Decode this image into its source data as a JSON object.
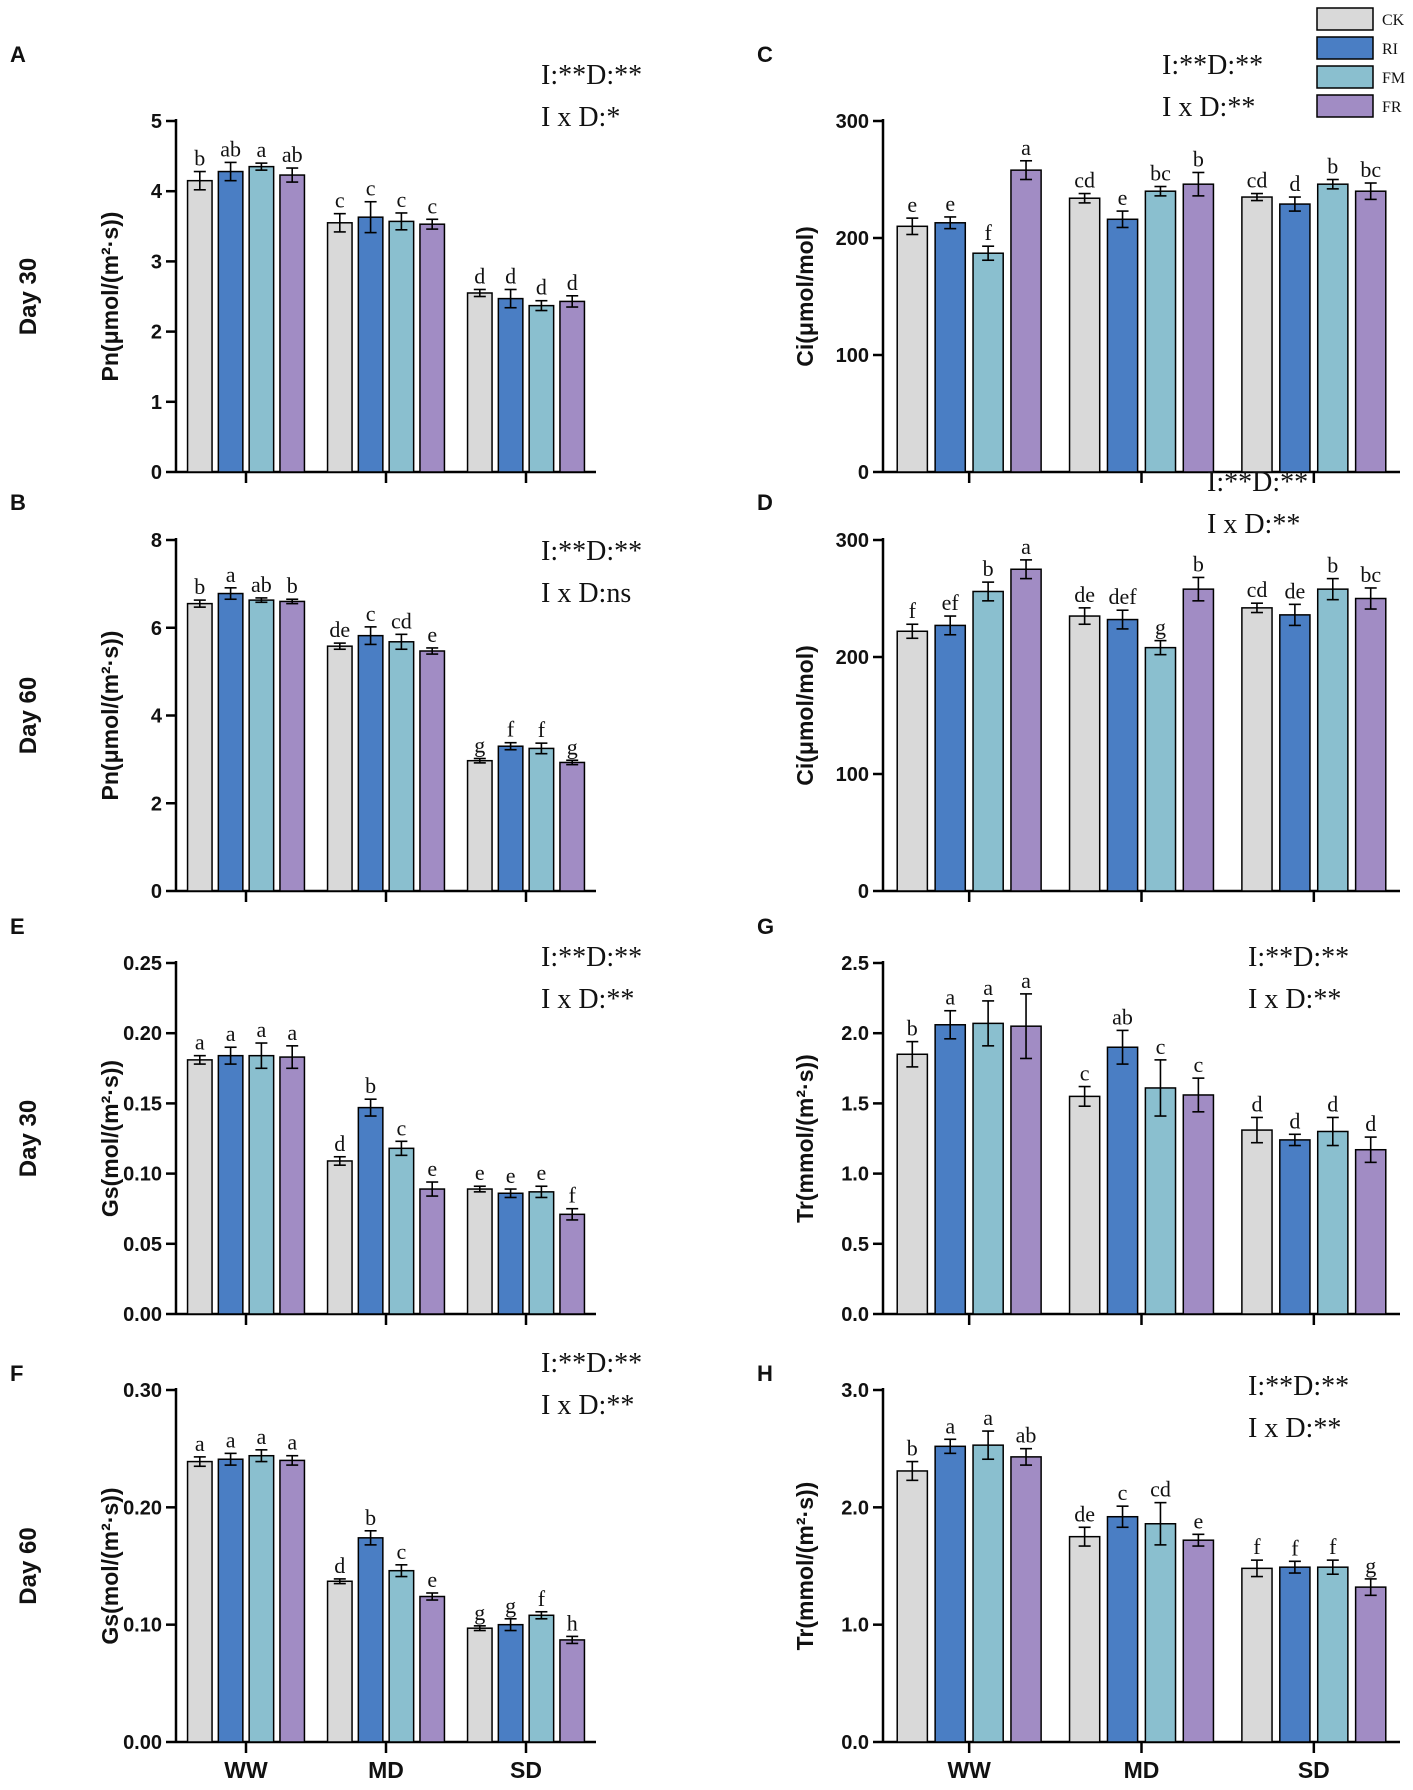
{
  "legend": {
    "entries": [
      {
        "name": "CK",
        "color": "#D9D9D9"
      },
      {
        "name": "RI",
        "color": "#4A7EC4"
      },
      {
        "name": "FM",
        "color": "#8ABFCF"
      },
      {
        "name": "FR",
        "color": "#A18CC4"
      }
    ]
  },
  "x_categories": [
    "WW",
    "MD",
    "SD"
  ],
  "row_labels": [
    "Day 30",
    "Day 60"
  ],
  "chart_data": [
    {
      "type": "bar",
      "panel": "A",
      "row_label": "Day 30",
      "ylabel": "Pn(μmol/(m²·s))",
      "ylim": [
        0,
        5
      ],
      "yticks": [
        "0",
        "1",
        "2",
        "3",
        "4",
        "5"
      ],
      "categories": [
        "WW",
        "MD",
        "SD"
      ],
      "show_xlabels": false,
      "annotation": [
        "I:**D:**",
        "I x D:*"
      ],
      "series": [
        {
          "name": "CK",
          "values": [
            4.15,
            3.55,
            2.55
          ],
          "errors": [
            0.13,
            0.13,
            0.05
          ],
          "letters": [
            "b",
            "c",
            "d"
          ]
        },
        {
          "name": "RI",
          "values": [
            4.28,
            3.63,
            2.47
          ],
          "errors": [
            0.13,
            0.22,
            0.13
          ],
          "letters": [
            "ab",
            "c",
            "d"
          ]
        },
        {
          "name": "FM",
          "values": [
            4.35,
            3.57,
            2.37
          ],
          "errors": [
            0.05,
            0.12,
            0.07
          ],
          "letters": [
            "a",
            "c",
            "d"
          ]
        },
        {
          "name": "FR",
          "values": [
            4.23,
            3.53,
            2.43
          ],
          "errors": [
            0.1,
            0.07,
            0.08
          ],
          "letters": [
            "ab",
            "c",
            "d"
          ]
        }
      ]
    },
    {
      "type": "bar",
      "panel": "C",
      "row_label": "",
      "ylabel": "Ci(μmol/mol)",
      "ylim": [
        0,
        300
      ],
      "yticks": [
        "0",
        "100",
        "200",
        "300"
      ],
      "categories": [
        "WW",
        "MD",
        "SD"
      ],
      "show_xlabels": false,
      "annotation": [
        "I:**D:**",
        "I x D:**"
      ],
      "series": [
        {
          "name": "CK",
          "values": [
            210,
            234,
            235
          ],
          "errors": [
            7,
            4,
            3
          ],
          "letters": [
            "e",
            "cd",
            "cd"
          ]
        },
        {
          "name": "RI",
          "values": [
            213,
            216,
            229
          ],
          "errors": [
            5,
            7,
            6
          ],
          "letters": [
            "e",
            "e",
            "d"
          ]
        },
        {
          "name": "FM",
          "values": [
            187,
            240,
            246
          ],
          "errors": [
            6,
            4,
            4
          ],
          "letters": [
            "f",
            "bc",
            "b"
          ]
        },
        {
          "name": "FR",
          "values": [
            258,
            246,
            240
          ],
          "errors": [
            8,
            10,
            7
          ],
          "letters": [
            "a",
            "b",
            "bc"
          ]
        }
      ]
    },
    {
      "type": "bar",
      "panel": "B",
      "row_label": "Day 60",
      "ylabel": "Pn(μmol/(m²·s))",
      "ylim": [
        0,
        8
      ],
      "yticks": [
        "0",
        "2",
        "4",
        "6",
        "8"
      ],
      "categories": [
        "WW",
        "MD",
        "SD"
      ],
      "show_xlabels": false,
      "annotation": [
        "I:**D:**",
        "I x D:ns"
      ],
      "series": [
        {
          "name": "CK",
          "values": [
            6.55,
            5.58,
            2.97
          ],
          "errors": [
            0.08,
            0.07,
            0.05
          ],
          "letters": [
            "b",
            "de",
            "g"
          ]
        },
        {
          "name": "RI",
          "values": [
            6.78,
            5.82,
            3.3
          ],
          "errors": [
            0.13,
            0.2,
            0.08
          ],
          "letters": [
            "a",
            "c",
            "f"
          ]
        },
        {
          "name": "FM",
          "values": [
            6.63,
            5.68,
            3.25
          ],
          "errors": [
            0.05,
            0.17,
            0.12
          ],
          "letters": [
            "ab",
            "cd",
            "f"
          ]
        },
        {
          "name": "FR",
          "values": [
            6.6,
            5.47,
            2.93
          ],
          "errors": [
            0.05,
            0.07,
            0.05
          ],
          "letters": [
            "b",
            "e",
            "g"
          ]
        }
      ]
    },
    {
      "type": "bar",
      "panel": "D",
      "row_label": "",
      "ylabel": "Ci(μmol/mol)",
      "ylim": [
        0,
        300
      ],
      "yticks": [
        "0",
        "100",
        "200",
        "300"
      ],
      "categories": [
        "WW",
        "MD",
        "SD"
      ],
      "show_xlabels": false,
      "annotation": [
        "I:**D:**",
        "I x D:**"
      ],
      "series": [
        {
          "name": "CK",
          "values": [
            222,
            235,
            242
          ],
          "errors": [
            6,
            7,
            4
          ],
          "letters": [
            "f",
            "de",
            "cd"
          ]
        },
        {
          "name": "RI",
          "values": [
            227,
            232,
            236
          ],
          "errors": [
            8,
            8,
            9
          ],
          "letters": [
            "ef",
            "def",
            "de"
          ]
        },
        {
          "name": "FM",
          "values": [
            256,
            208,
            258
          ],
          "errors": [
            8,
            6,
            9
          ],
          "letters": [
            "b",
            "g",
            "b"
          ]
        },
        {
          "name": "FR",
          "values": [
            275,
            258,
            250
          ],
          "errors": [
            8,
            10,
            9
          ],
          "letters": [
            "a",
            "b",
            "bc"
          ]
        }
      ]
    },
    {
      "type": "bar",
      "panel": "E",
      "row_label": "Day 30",
      "ylabel": "Gs(mol/(m²·s))",
      "ylim": [
        0,
        0.25
      ],
      "yticks": [
        "0.00",
        "0.05",
        "0.10",
        "0.15",
        "0.20",
        "0.25"
      ],
      "categories": [
        "WW",
        "MD",
        "SD"
      ],
      "show_xlabels": false,
      "annotation": [
        "I:**D:**",
        "I x D:**"
      ],
      "series": [
        {
          "name": "CK",
          "values": [
            0.181,
            0.109,
            0.089
          ],
          "errors": [
            0.003,
            0.003,
            0.002
          ],
          "letters": [
            "a",
            "d",
            "e"
          ]
        },
        {
          "name": "RI",
          "values": [
            0.184,
            0.147,
            0.086
          ],
          "errors": [
            0.006,
            0.006,
            0.003
          ],
          "letters": [
            "a",
            "b",
            "e"
          ]
        },
        {
          "name": "FM",
          "values": [
            0.184,
            0.118,
            0.087
          ],
          "errors": [
            0.009,
            0.005,
            0.004
          ],
          "letters": [
            "a",
            "c",
            "e"
          ]
        },
        {
          "name": "FR",
          "values": [
            0.183,
            0.089,
            0.071
          ],
          "errors": [
            0.008,
            0.005,
            0.004
          ],
          "letters": [
            "a",
            "e",
            "f"
          ]
        }
      ]
    },
    {
      "type": "bar",
      "panel": "G",
      "row_label": "",
      "ylabel": "Tr(mmol/(m²·s))",
      "ylim": [
        0,
        2.5
      ],
      "yticks": [
        "0.0",
        "0.5",
        "1.0",
        "1.5",
        "2.0",
        "2.5"
      ],
      "categories": [
        "WW",
        "MD",
        "SD"
      ],
      "show_xlabels": false,
      "annotation": [
        "I:**D:**",
        "I x D:**"
      ],
      "series": [
        {
          "name": "CK",
          "values": [
            1.85,
            1.55,
            1.31
          ],
          "errors": [
            0.09,
            0.07,
            0.09
          ],
          "letters": [
            "b",
            "c",
            "d"
          ]
        },
        {
          "name": "RI",
          "values": [
            2.06,
            1.9,
            1.24
          ],
          "errors": [
            0.1,
            0.12,
            0.04
          ],
          "letters": [
            "a",
            "ab",
            "d"
          ]
        },
        {
          "name": "FM",
          "values": [
            2.07,
            1.61,
            1.3
          ],
          "errors": [
            0.16,
            0.2,
            0.1
          ],
          "letters": [
            "a",
            "c",
            "d"
          ]
        },
        {
          "name": "FR",
          "values": [
            2.05,
            1.56,
            1.17
          ],
          "errors": [
            0.23,
            0.12,
            0.09
          ],
          "letters": [
            "a",
            "c",
            "d"
          ]
        }
      ]
    },
    {
      "type": "bar",
      "panel": "F",
      "row_label": "Day 60",
      "ylabel": "Gs(mol/(m²·s))",
      "ylim": [
        0,
        0.3
      ],
      "yticks": [
        "0.00",
        "0.10",
        "0.20",
        "0.30"
      ],
      "categories": [
        "WW",
        "MD",
        "SD"
      ],
      "show_xlabels": true,
      "annotation": [
        "I:**D:**",
        "I x D:**"
      ],
      "series": [
        {
          "name": "CK",
          "values": [
            0.239,
            0.137,
            0.097
          ],
          "errors": [
            0.004,
            0.002,
            0.002
          ],
          "letters": [
            "a",
            "d",
            "g"
          ]
        },
        {
          "name": "RI",
          "values": [
            0.241,
            0.174,
            0.1
          ],
          "errors": [
            0.005,
            0.006,
            0.005
          ],
          "letters": [
            "a",
            "b",
            "g"
          ]
        },
        {
          "name": "FM",
          "values": [
            0.244,
            0.146,
            0.108
          ],
          "errors": [
            0.005,
            0.005,
            0.003
          ],
          "letters": [
            "a",
            "c",
            "f"
          ]
        },
        {
          "name": "FR",
          "values": [
            0.24,
            0.124,
            0.087
          ],
          "errors": [
            0.004,
            0.003,
            0.003
          ],
          "letters": [
            "a",
            "e",
            "h"
          ]
        }
      ]
    },
    {
      "type": "bar",
      "panel": "H",
      "row_label": "",
      "ylabel": "Tr(mmol/(m²·s))",
      "ylim": [
        0,
        3.0
      ],
      "yticks": [
        "0.0",
        "1.0",
        "2.0",
        "3.0"
      ],
      "categories": [
        "WW",
        "MD",
        "SD"
      ],
      "show_xlabels": true,
      "annotation": [
        "I:**D:**",
        "I x D:**"
      ],
      "series": [
        {
          "name": "CK",
          "values": [
            2.31,
            1.75,
            1.48
          ],
          "errors": [
            0.08,
            0.08,
            0.07
          ],
          "letters": [
            "b",
            "de",
            "f"
          ]
        },
        {
          "name": "RI",
          "values": [
            2.52,
            1.92,
            1.49
          ],
          "errors": [
            0.06,
            0.09,
            0.05
          ],
          "letters": [
            "a",
            "c",
            "f"
          ]
        },
        {
          "name": "FM",
          "values": [
            2.53,
            1.86,
            1.49
          ],
          "errors": [
            0.12,
            0.18,
            0.06
          ],
          "letters": [
            "a",
            "cd",
            "f"
          ]
        },
        {
          "name": "FR",
          "values": [
            2.43,
            1.72,
            1.32
          ],
          "errors": [
            0.07,
            0.05,
            0.07
          ],
          "letters": [
            "ab",
            "e",
            "g"
          ]
        }
      ]
    }
  ]
}
